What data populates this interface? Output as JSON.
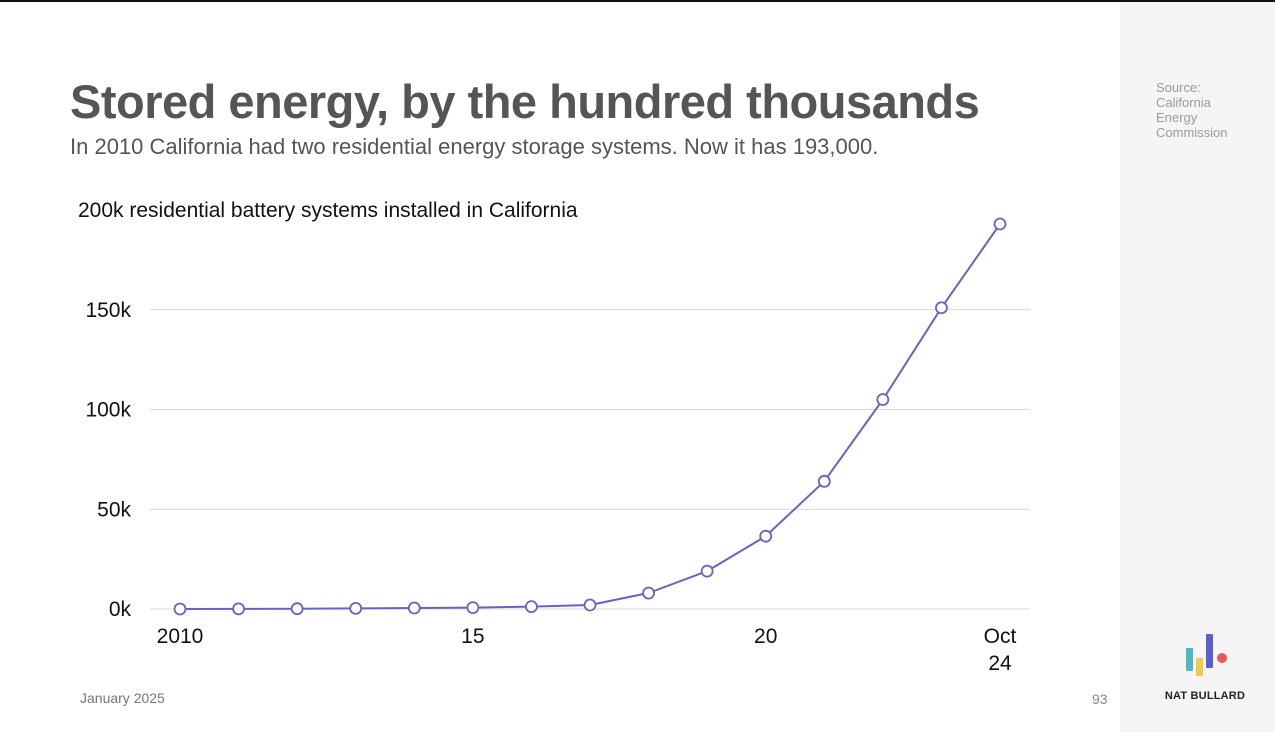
{
  "header": {
    "title": "Stored energy, by the hundred thousands",
    "subtitle": "In 2010 California had two residential energy storage systems. Now it has 193,000."
  },
  "source": {
    "lines": [
      "Source:",
      "California",
      "Energy",
      "Commission"
    ]
  },
  "footer": {
    "date": "January 2025",
    "page_number": "93",
    "brand": "NAT BULLARD"
  },
  "colors": {
    "line": "#6366c1",
    "grid": "#d9d9d9",
    "text": "#555555",
    "logo_teal": "#4fb7c4",
    "logo_yellow": "#f2c94c",
    "logo_purple": "#5b5fc7",
    "logo_red": "#eb5757"
  },
  "chart_data": {
    "type": "line",
    "title": "200k residential battery systems installed in California",
    "xlabel": "",
    "ylabel": "",
    "x": [
      2010,
      2011,
      2012,
      2013,
      2014,
      2015,
      2016,
      2017,
      2018,
      2019,
      2020,
      2021,
      2022,
      2023,
      2024
    ],
    "series": [
      {
        "name": "Residential battery systems",
        "values": [
          2,
          50,
          150,
          300,
          500,
          700,
          1200,
          2000,
          8000,
          19000,
          36500,
          64000,
          105000,
          151000,
          193000
        ]
      }
    ],
    "ylim": [
      0,
      200000
    ],
    "yticks": [
      {
        "value": 0,
        "label": "0k"
      },
      {
        "value": 50000,
        "label": "50k"
      },
      {
        "value": 100000,
        "label": "100k"
      },
      {
        "value": 150000,
        "label": "150k"
      }
    ],
    "xticks": [
      {
        "value": 2010,
        "label": "2010"
      },
      {
        "value": 2015,
        "label": "15"
      },
      {
        "value": 2020,
        "label": "20"
      },
      {
        "value": 2024,
        "label": "Oct",
        "label2": "24"
      }
    ],
    "grid": true,
    "legend": "none"
  }
}
